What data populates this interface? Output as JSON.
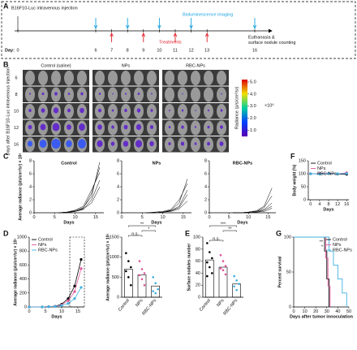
{
  "panel_labels": [
    "A",
    "B",
    "C",
    "D",
    "E",
    "F",
    "G"
  ],
  "timeline": {
    "injection": "B16F10-Luc intravenous injection",
    "imaging_label": "Bioluminescence imaging",
    "treatments_label": "Treatments",
    "end_label": [
      "Euthanasia &",
      "surface nodule counting"
    ],
    "day_label": "Day:",
    "days": [
      0,
      6,
      7,
      8,
      9,
      10,
      11,
      12,
      13,
      16
    ],
    "imaging_days": [
      6,
      8,
      10,
      12,
      16
    ],
    "treatment_days": [
      7,
      9,
      11,
      13
    ]
  },
  "imaging": {
    "columns": [
      "Control (saline)",
      "NPs",
      "RBC-NPs"
    ],
    "row_days": [
      6,
      8,
      10,
      12,
      16
    ],
    "side_label": "Days after B16F10-Luc intravenous injection",
    "colorbar_label": "Radiance (p/s/cm²/sr)",
    "multiplier": "×10⁶",
    "colorbar_ticks": [
      {
        "value": 1,
        "label": "1.0"
      },
      {
        "value": 2,
        "label": "2.0"
      },
      {
        "value": 3,
        "label": "3.0"
      },
      {
        "value": 4,
        "label": "4.0"
      },
      {
        "value": 5,
        "label": "5.0"
      }
    ],
    "colorbar_lim": [
      0.5,
      5.2
    ]
  },
  "chart_data": [
    {
      "type": "line",
      "title": "Control",
      "ylabel": "Average radiance (p/s/cm²/sr) × 10⁶",
      "xlabel": "Days",
      "x": [
        6,
        8,
        10,
        12,
        14,
        16
      ],
      "xlim": [
        0,
        17
      ],
      "xticks": [
        0,
        5,
        10,
        15
      ],
      "ylim": [
        0,
        8
      ],
      "yticks": [
        0,
        2,
        4,
        6,
        8
      ],
      "series": [
        {
          "color": "#000",
          "values": [
            0,
            0.1,
            0.3,
            0.8,
            2.5,
            7.8
          ]
        },
        {
          "color": "#000",
          "values": [
            0,
            0.1,
            0.2,
            0.7,
            3,
            7
          ]
        },
        {
          "color": "#000",
          "values": [
            0,
            0.1,
            0.4,
            1,
            3.5,
            6.2
          ]
        },
        {
          "color": "#000",
          "values": [
            0,
            0,
            0.2,
            0.5,
            2,
            5
          ]
        },
        {
          "color": "#000",
          "values": [
            0,
            0.1,
            0.2,
            0.6,
            1.5,
            4
          ]
        }
      ]
    },
    {
      "type": "line",
      "title": "NPs",
      "xlabel": "Days",
      "x": [
        6,
        8,
        10,
        12,
        14,
        16
      ],
      "xlim": [
        0,
        17
      ],
      "xticks": [
        0,
        5,
        10,
        15
      ],
      "ylim": [
        0,
        8
      ],
      "yticks": [
        0,
        2,
        4,
        6,
        8
      ],
      "series": [
        {
          "color": "#000",
          "values": [
            0,
            0,
            0.1,
            0.4,
            1.5,
            5.2
          ]
        },
        {
          "color": "#000",
          "values": [
            0,
            0.1,
            0.2,
            0.5,
            2,
            4.5
          ]
        },
        {
          "color": "#000",
          "values": [
            0,
            0,
            0.1,
            0.3,
            1,
            3.5
          ]
        },
        {
          "color": "#000",
          "values": [
            0,
            0,
            0.1,
            0.3,
            0.8,
            2.8
          ]
        },
        {
          "color": "#000",
          "values": [
            0,
            0,
            0.1,
            0.2,
            0.6,
            1.8
          ]
        }
      ]
    },
    {
      "type": "line",
      "title": "RBC-NPs",
      "xlabel": "Days",
      "x": [
        6,
        8,
        10,
        12,
        14,
        16
      ],
      "xlim": [
        0,
        17
      ],
      "xticks": [
        0,
        5,
        10,
        15
      ],
      "ylim": [
        0,
        8
      ],
      "yticks": [
        0,
        2,
        4,
        6,
        8
      ],
      "series": [
        {
          "color": "#000",
          "values": [
            0,
            0,
            0.1,
            0.3,
            1,
            3.8
          ]
        },
        {
          "color": "#000",
          "values": [
            0,
            0,
            0.1,
            0.2,
            0.8,
            2.6
          ]
        },
        {
          "color": "#000",
          "values": [
            0,
            0,
            0.1,
            0.2,
            0.5,
            1.5
          ]
        },
        {
          "color": "#000",
          "values": [
            0,
            0,
            0,
            0.1,
            0.4,
            1
          ]
        },
        {
          "color": "#000",
          "values": [
            0,
            0,
            0,
            0.1,
            0.2,
            0.7
          ]
        }
      ]
    },
    {
      "type": "line",
      "markers": true,
      "ylabel": "Body weight (%)",
      "xlabel": "Days",
      "legend": "upper left",
      "x": [
        0,
        4,
        8,
        12,
        16
      ],
      "xlim": [
        -1,
        17
      ],
      "xticks": [
        0,
        4,
        8,
        12,
        16
      ],
      "ylim": [
        0,
        150
      ],
      "yticks": [
        0,
        50,
        100,
        150
      ],
      "series": [
        {
          "name": "Control",
          "color": "#000",
          "values": [
            100,
            100,
            101,
            99,
            98
          ]
        },
        {
          "name": "NPs",
          "color": "#e0559a",
          "values": [
            100,
            101,
            102,
            100,
            104
          ]
        },
        {
          "name": "RBC-NPs",
          "color": "#3fb0e0",
          "values": [
            100,
            99,
            101,
            100,
            101
          ]
        }
      ]
    },
    {
      "type": "line",
      "markers": true,
      "ylabel": "Average radiance (p/s/cm²/sr) × 10⁶",
      "xlabel": "Days",
      "legend": "upper left",
      "x": [
        0,
        4,
        6,
        8,
        10,
        12,
        14,
        16
      ],
      "xlim": [
        0,
        17
      ],
      "xticks": [
        0,
        5,
        10,
        15
      ],
      "ylim": [
        0,
        1000
      ],
      "yticks": [
        0,
        200,
        400,
        600,
        800,
        1000
      ],
      "series": [
        {
          "name": "Control",
          "color": "#000",
          "values": [
            0,
            0,
            5,
            10,
            40,
            120,
            300,
            680
          ]
        },
        {
          "name": "NPs",
          "color": "#e0559a",
          "values": [
            0,
            0,
            5,
            10,
            30,
            90,
            220,
            550
          ]
        },
        {
          "name": "RBC-NPs",
          "color": "#3fb0e0",
          "values": [
            0,
            0,
            3,
            8,
            20,
            50,
            120,
            280
          ]
        }
      ]
    },
    {
      "type": "bar",
      "ylabel": "Average radiance (p/s/cm²/sr) × 10⁶",
      "categories": [
        "Control",
        "NPs",
        "RBC-NPs"
      ],
      "colors": [
        "#000",
        "#e0559a",
        "#3fb0e0"
      ],
      "values": [
        700,
        560,
        280
      ],
      "points": [
        [
          1100,
          900,
          750,
          650,
          500,
          300
        ],
        [
          900,
          700,
          600,
          550,
          450,
          300
        ],
        [
          500,
          350,
          200,
          150,
          100
        ]
      ],
      "ylim": [
        0,
        1500
      ],
      "yticks": [
        0,
        500,
        1000,
        1500
      ],
      "annotations": [
        "n.s.",
        "*",
        "**"
      ]
    },
    {
      "type": "bar",
      "ylabel": "Surface nodules number",
      "categories": [
        "Control",
        "NPs",
        "RBC-NPs"
      ],
      "colors": [
        "#000",
        "#e0559a",
        "#3fb0e0"
      ],
      "values": [
        62,
        50,
        22
      ],
      "points": [
        [
          90,
          75,
          65,
          58,
          50,
          40,
          35
        ],
        [
          70,
          60,
          52,
          48,
          45,
          38
        ],
        [
          35,
          28,
          22,
          18,
          12
        ]
      ],
      "ylim": [
        0,
        100
      ],
      "yticks": [
        0,
        20,
        40,
        60,
        80,
        100
      ],
      "annotations": [
        "***",
        "**",
        "n.s."
      ]
    },
    {
      "type": "step",
      "ylabel": "Percent survival",
      "xlabel": "Days after tumor innoculation",
      "legend": "upper right",
      "xlim": [
        0,
        50
      ],
      "xticks": [
        0,
        10,
        20,
        30,
        40,
        50
      ],
      "ylim": [
        0,
        100
      ],
      "yticks": [
        0,
        50,
        100
      ],
      "annotations": [
        "**",
        "*"
      ],
      "series": [
        {
          "name": "Control",
          "color": "#000",
          "x": [
            0,
            26,
            28,
            30,
            32
          ],
          "values": [
            100,
            100,
            80,
            40,
            0
          ]
        },
        {
          "name": "NPs",
          "color": "#e0559a",
          "x": [
            0,
            27,
            29,
            31,
            33
          ],
          "values": [
            100,
            100,
            70,
            30,
            0
          ]
        },
        {
          "name": "RBC-NPs",
          "color": "#3fb0e0",
          "x": [
            0,
            30,
            32,
            36,
            40,
            44,
            48
          ],
          "values": [
            100,
            100,
            80,
            60,
            40,
            20,
            0
          ]
        }
      ]
    }
  ]
}
